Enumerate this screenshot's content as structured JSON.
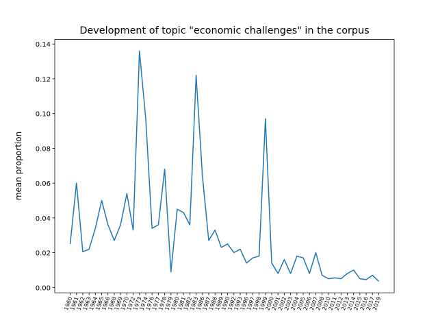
{
  "chart_data": {
    "type": "line",
    "title": "Development of topic \"economic challenges\" in the corpus",
    "y_label": "mean proportion",
    "categories": [
      "1960",
      "1961",
      "1962",
      "1963",
      "1964",
      "1965",
      "1966",
      "1968",
      "1969",
      "1970",
      "1972",
      "1973",
      "1974",
      "1976",
      "1977",
      "1978",
      "1979",
      "1980",
      "1981",
      "1982",
      "1983",
      "1986",
      "1987",
      "1988",
      "1989",
      "1990",
      "1992",
      "1993",
      "1996",
      "1997",
      "1998",
      "1999",
      "2000",
      "2001",
      "2002",
      "2003",
      "2004",
      "2005",
      "2006",
      "2007",
      "2008",
      "2010",
      "2011",
      "2012",
      "2013",
      "2014",
      "2015",
      "2016",
      "2017",
      "2019"
    ],
    "series": [
      {
        "name": "economic challenges",
        "color": "#1f77b4",
        "values": [
          0.025,
          0.06,
          0.0205,
          0.022,
          0.034,
          0.05,
          0.036,
          0.027,
          0.036,
          0.054,
          0.033,
          0.136,
          0.097,
          0.034,
          0.036,
          0.068,
          0.009,
          0.045,
          0.043,
          0.036,
          0.122,
          0.064,
          0.027,
          0.033,
          0.023,
          0.025,
          0.02,
          0.022,
          0.014,
          0.017,
          0.018,
          0.097,
          0.014,
          0.008,
          0.016,
          0.008,
          0.018,
          0.017,
          0.008,
          0.02,
          0.007,
          0.005,
          0.0055,
          0.005,
          0.008,
          0.01,
          0.005,
          0.0045,
          0.007,
          0.0035
        ]
      }
    ],
    "ylim": [
      -0.0031,
      0.1426
    ],
    "yticks": [
      {
        "value": 0,
        "label": "0.00"
      },
      {
        "value": 0.02,
        "label": "0.02"
      },
      {
        "value": 0.04,
        "label": "0.04"
      },
      {
        "value": 0.06,
        "label": "0.06"
      },
      {
        "value": 0.08,
        "label": "0.08"
      },
      {
        "value": 0.1,
        "label": "0.10"
      },
      {
        "value": 0.12,
        "label": "0.12"
      },
      {
        "value": 0.14,
        "label": "0.14"
      }
    ],
    "grid": false
  }
}
